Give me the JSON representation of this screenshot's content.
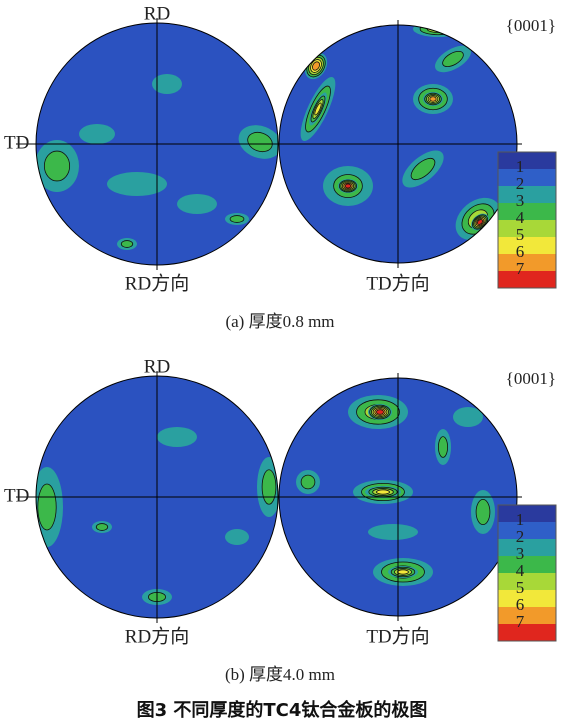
{
  "panels": [
    {
      "caption": "(a)  厚度0.8 mm",
      "left": {
        "top": "RD",
        "side": "TD",
        "bottom": "RD方向"
      },
      "right": {
        "bottom": "TD方向",
        "plane": "{0001}"
      },
      "levels": [
        1,
        2,
        3,
        4,
        5,
        6,
        7
      ]
    },
    {
      "caption": "(b)  厚度4.0 mm",
      "left": {
        "top": "RD",
        "side": "TD",
        "bottom": "RD方向"
      },
      "right": {
        "bottom": "TD方向",
        "plane": "{0001}"
      },
      "levels": [
        1,
        2,
        3,
        4,
        5,
        6,
        7
      ]
    }
  ],
  "figure_title": "图3    不同厚度的TC4钛合金板的极图"
}
